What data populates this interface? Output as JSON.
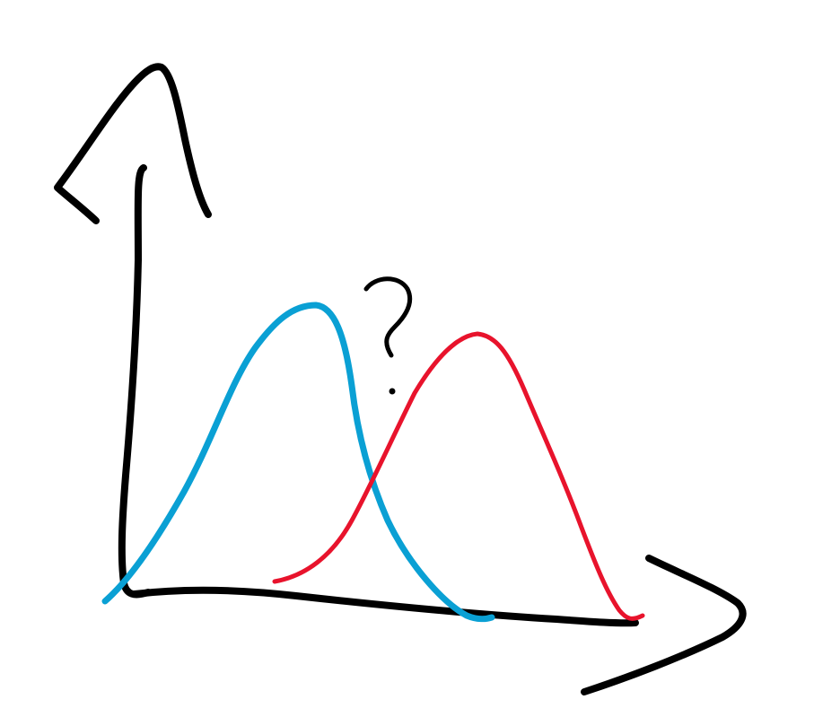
{
  "chart_data": {
    "type": "line",
    "title": "",
    "xlabel": "",
    "ylabel": "",
    "axes": {
      "ticks": false,
      "grid": false,
      "legend": "none"
    },
    "series": [
      {
        "color": "#0aa0d4",
        "shape": "bell",
        "center": 0.48,
        "peak": 0.53
      },
      {
        "color": "#e8132c",
        "shape": "bell",
        "center": 0.72,
        "peak": 0.48
      }
    ],
    "annotation": {
      "text": "?"
    },
    "colors": {
      "axis": "#000000",
      "background": "#ffffff"
    }
  }
}
